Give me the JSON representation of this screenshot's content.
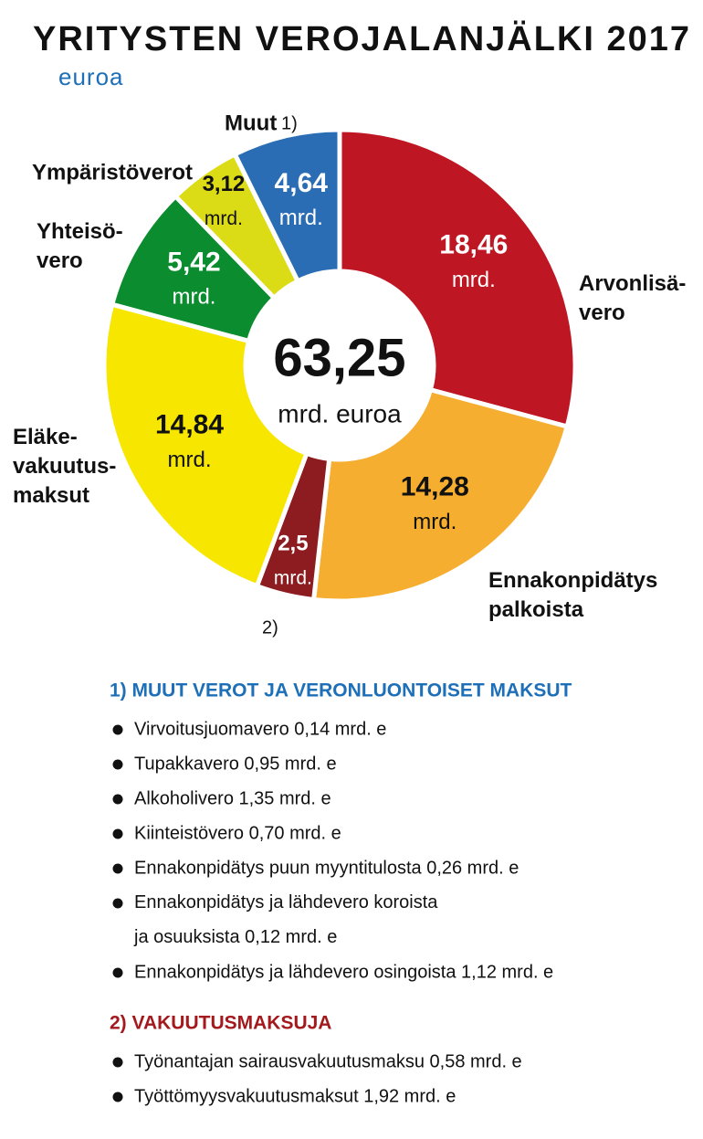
{
  "chart_data": {
    "type": "donut",
    "title": "YRITYSTEN VEROJALANJÄLKI 2017",
    "subtitle": "euroa",
    "categories": [
      "Arvonlisä-\nvero",
      "Ennakonpidätys\npalkoista",
      null,
      "Eläke-\nvakuutus-\nmaksut",
      "Yhteisö-\nvero",
      "Ympäristöverot",
      "Muut"
    ],
    "values": [
      18.46,
      14.28,
      2.5,
      14.84,
      5.42,
      3.12,
      4.64
    ],
    "value_labels": [
      "18,46",
      "14,28",
      "2,5",
      "14,84",
      "5,42",
      "3,12",
      "4,64"
    ],
    "value_unit": "mrd.",
    "colors": [
      "#be1622",
      "#f5ae2f",
      "#8c1c1f",
      "#f7e600",
      "#0b8c2e",
      "#dcdc16",
      "#2a6db5"
    ],
    "center_value": "63,25",
    "center_unit": "mrd. euroa",
    "notes": [
      "1)",
      "2)"
    ]
  },
  "notes_list": [
    {
      "title": "1) MUUT VEROT JA VERONLUONTOISET MAKSUT",
      "items": [
        "Virvoitusjuomavero 0,14 mrd. e",
        "Tupakkavero 0,95 mrd. e",
        "Alkoholivero 1,35 mrd. e",
        "Kiinteistövero 0,70 mrd. e",
        "Ennakonpidätys puun myyntitulosta 0,26 mrd. e",
        "Ennakonpidätys ja lähdevero koroista\nja osuuksista 0,12 mrd. e",
        "Ennakonpidätys ja lähdevero osingoista 1,12 mrd. e"
      ]
    },
    {
      "title": "2) VAKUUTUSMAKSUJA",
      "items": [
        "Työnantajan sairausvakuutusmaksu 0,58 mrd. e",
        "Työttömyysvakuutusmaksut 1,92 mrd. e"
      ]
    }
  ]
}
